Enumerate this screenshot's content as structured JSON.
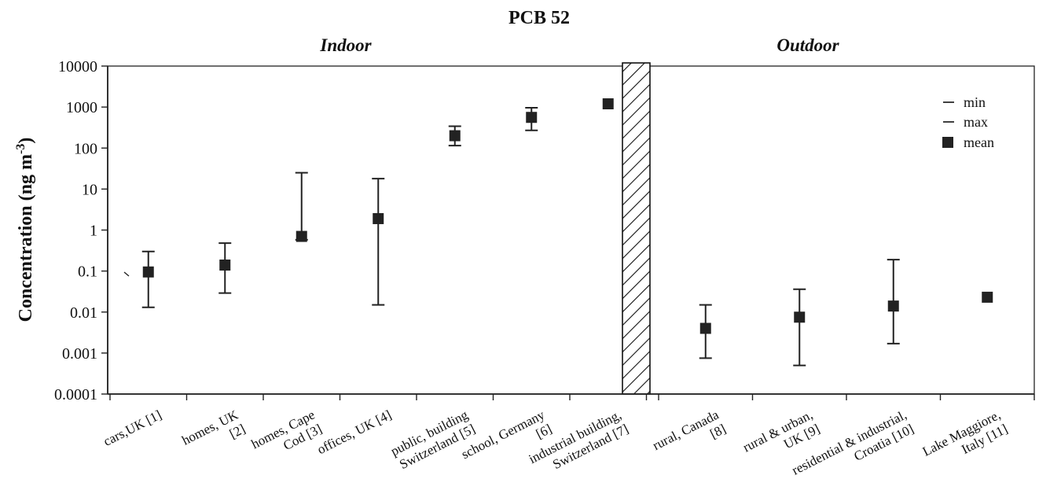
{
  "chart_data": {
    "type": "scatter",
    "title": "PCB 52",
    "sections": {
      "left": "Indoor",
      "right": "Outdoor"
    },
    "ylabel_main": "Concentration (ng m",
    "ylabel_sup": "-3",
    "ylabel_end": ")",
    "yscale": "log",
    "ylim": [
      0.0001,
      10000
    ],
    "yticks": [
      "0.0001",
      "0.001",
      "0.01",
      "0.1",
      "1",
      "10",
      "100",
      "1000",
      "10000"
    ],
    "legend_position": "top-right",
    "legend": [
      {
        "key": "min",
        "label": "min"
      },
      {
        "key": "max",
        "label": "max"
      },
      {
        "key": "mean",
        "label": "mean"
      }
    ],
    "separator": "hatched bar between indoor and outdoor groups",
    "categories": [
      {
        "label": [
          "cars,UK [1]"
        ],
        "group": "indoor",
        "min": 0.013,
        "max": 0.3,
        "mean": 0.095
      },
      {
        "label": [
          "homes, UK",
          "[2]"
        ],
        "group": "indoor",
        "min": 0.029,
        "max": 0.48,
        "mean": 0.14
      },
      {
        "label": [
          "homes, Cape",
          "Cod [3]"
        ],
        "group": "indoor",
        "min": 0.58,
        "max": 25,
        "mean": 0.7
      },
      {
        "label": [
          "offices, UK [4]"
        ],
        "group": "indoor",
        "min": 0.015,
        "max": 18,
        "mean": 1.9
      },
      {
        "label": [
          "public, building",
          "Switzerland [5]"
        ],
        "group": "indoor",
        "min": 115,
        "max": 340,
        "mean": 200
      },
      {
        "label": [
          "school, Germany",
          "[6]"
        ],
        "group": "indoor",
        "min": 270,
        "max": 960,
        "mean": 560
      },
      {
        "label": [
          "industrial building,",
          "Switzerland [7]"
        ],
        "group": "indoor",
        "min": null,
        "max": null,
        "mean": 1200
      },
      {
        "label": [
          "rural, Canada",
          "[8]"
        ],
        "group": "outdoor",
        "min": 0.00075,
        "max": 0.015,
        "mean": 0.004
      },
      {
        "label": [
          "rural & urban,",
          "UK [9]"
        ],
        "group": "outdoor",
        "min": 0.0005,
        "max": 0.036,
        "mean": 0.0075
      },
      {
        "label": [
          "residential & industrial,",
          "Croatia [10]"
        ],
        "group": "outdoor",
        "min": 0.0017,
        "max": 0.19,
        "mean": 0.014
      },
      {
        "label": [
          "Lake Maggiore,",
          "Italy [11]"
        ],
        "group": "outdoor",
        "min": null,
        "max": null,
        "mean": 0.023
      }
    ]
  }
}
